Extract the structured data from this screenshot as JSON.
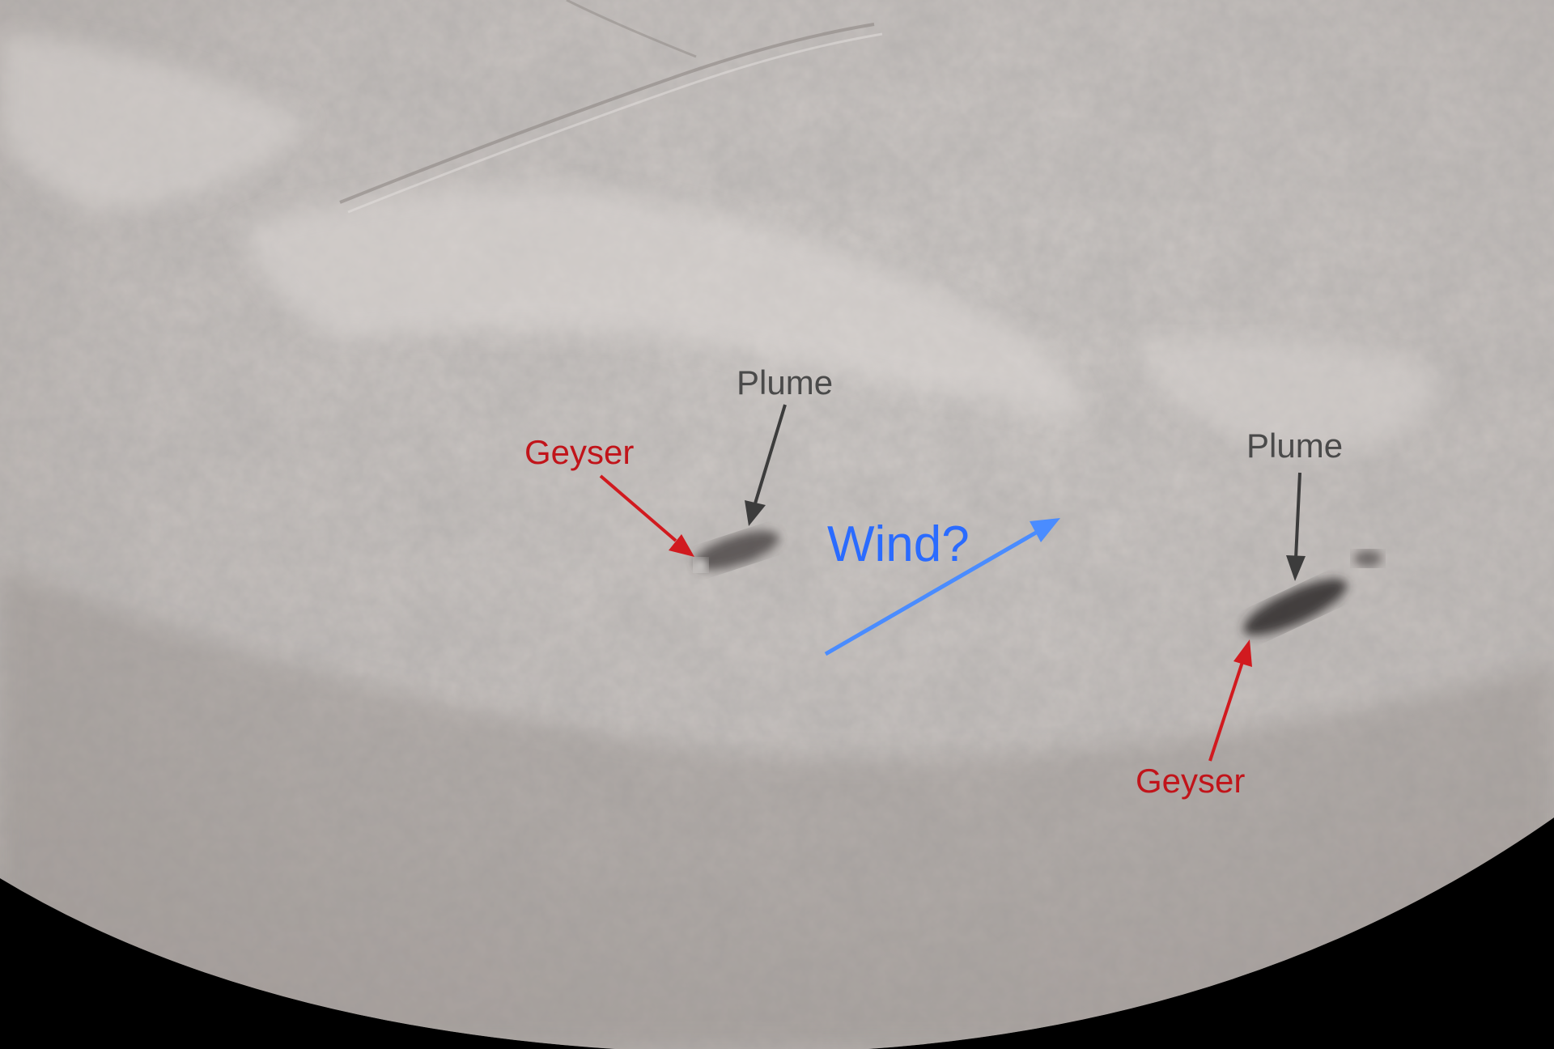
{
  "colors": {
    "plume_label": "#4a4a4a",
    "geyser_label": "#c1141a",
    "wind_label": "#2a6bff",
    "plume_arrow": "#3c3c3c",
    "geyser_arrow": "#d11a1f",
    "wind_arrow": "#4a8cff",
    "space": "#000000",
    "surface": "#c9c3c0"
  },
  "annotations": {
    "plume_left": "Plume",
    "geyser_left": "Geyser",
    "wind": "Wind?",
    "plume_right": "Plume",
    "geyser_right": "Geyser"
  },
  "icons": {
    "plume_left_arrow": "arrow-down-icon",
    "geyser_left_arrow": "arrow-down-right-icon",
    "wind_arrow": "arrow-up-right-icon",
    "plume_right_arrow": "arrow-down-icon",
    "geyser_right_arrow": "arrow-up-icon"
  }
}
